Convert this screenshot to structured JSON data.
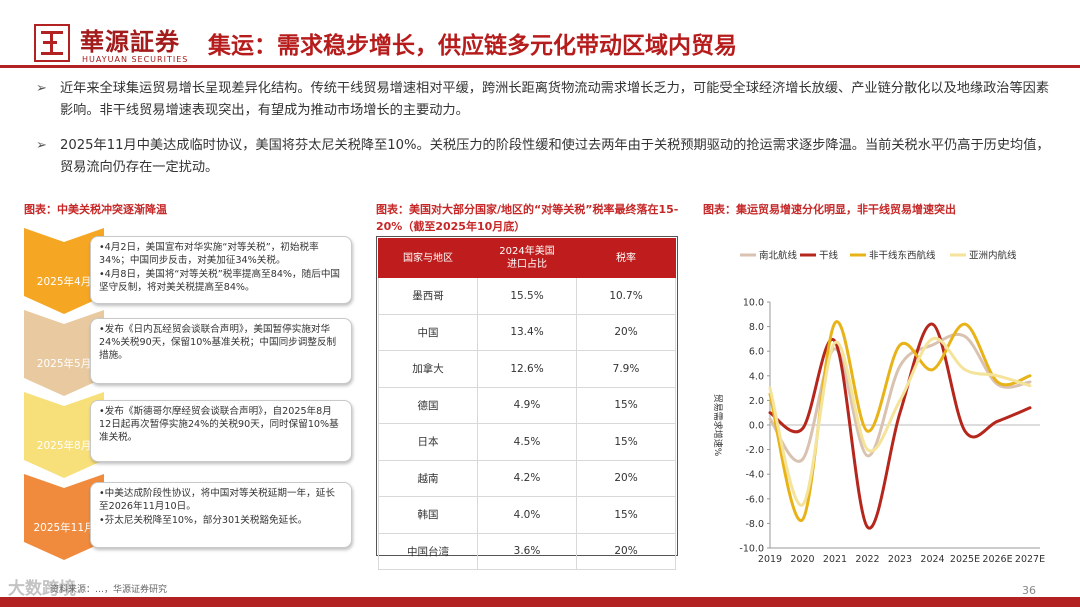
{
  "header": {
    "logo_cn": "華源証券",
    "logo_en": "HUAYUAN SECURITIES",
    "title": "集运：需求稳步增长，供应链多元化带动区域内贸易"
  },
  "bullets": [
    "近年来全球集运贸易增长呈现差异化结构。传统干线贸易增速相对平缓，跨洲长距离货物流动需求增长乏力，可能受全球经济增长放缓、产业链分散化以及地缘政治等因素影响。非干线贸易增速表现突出，有望成为推动市场增长的主要动力。",
    "2025年11月中美达成临时协议，美国将芬太尼关税降至10%。关税压力的阶段性缓和使过去两年由于关税预期驱动的抢运需求逐步降温。当前关税水平仍高于历史均值，贸易流向仍存在一定扰动。"
  ],
  "bullet_arrow": "➢",
  "timeline": {
    "caption": "图表：中美关税冲突逐渐降温",
    "items": [
      {
        "label": "2025年4月",
        "color": "#f5a623",
        "lines": [
          "•4月2日，美国宣布对华实施“对等关税”，初始税率34%；中国同步反击，对美加征34%关税。",
          "•4月8日，美国将“对等关税”税率提高至84%，随后中国坚守反制，将对美关税提高至84%。"
        ]
      },
      {
        "label": "2025年5月",
        "color": "#e8c9a0",
        "lines": [
          "•发布《日内瓦经贸会谈联合声明》，美国暂停实施对华24%关税90天，保留10%基准关税；中国同步调整反制措施。"
        ]
      },
      {
        "label": "2025年8月",
        "color": "#f7df7a",
        "lines": [
          "•发布《斯德哥尔摩经贸会谈联合声明》，自2025年8月12日起再次暂停实施24%的关税90天，同时保留10%基准关税。"
        ]
      },
      {
        "label": "2025年11月",
        "color": "#f08a3c",
        "lines": [
          "•中美达成阶段性协议，将中国对等关税延期一年，延长至2026年11月10日。",
          "•芬太尼关税降至10%，部分301关税豁免延长。"
        ]
      }
    ]
  },
  "table": {
    "caption": "图表：美国对大部分国家/地区的“对等关税”税率最终落在15-20%（截至2025年10月底）",
    "headers": [
      "国家与地区",
      "2024年美国\n进口占比",
      "税率"
    ],
    "rows": [
      [
        "墨西哥",
        "15.5%",
        "10.7%"
      ],
      [
        "中国",
        "13.4%",
        "20%"
      ],
      [
        "加拿大",
        "12.6%",
        "7.9%"
      ],
      [
        "德国",
        "4.9%",
        "15%"
      ],
      [
        "日本",
        "4.5%",
        "15%"
      ],
      [
        "越南",
        "4.2%",
        "20%"
      ],
      [
        "韩国",
        "4.0%",
        "15%"
      ],
      [
        "中国台湾",
        "3.6%",
        "20%"
      ]
    ]
  },
  "chart_caption": "图表：集运贸易增速分化明显，非干线贸易增速突出",
  "chart_data": {
    "type": "line",
    "title": "",
    "xlabel": "",
    "ylabel": "贸易需求增速%",
    "categories": [
      "2019",
      "2020",
      "2021",
      "2022",
      "2023",
      "2024",
      "2025E",
      "2026E",
      "2027E"
    ],
    "ylim": [
      -10,
      10
    ],
    "yticks": [
      "10.0",
      "8.0",
      "6.0",
      "4.0",
      "2.0",
      "0.0",
      "-2.0",
      "-4.0",
      "-6.0",
      "-8.0",
      "-10.0"
    ],
    "legend_position": "top",
    "series": [
      {
        "name": "南北航线",
        "color": "#d9c2b0",
        "values": [
          0.5,
          -2.8,
          6.2,
          -2.5,
          4.8,
          6.5,
          7.2,
          3.3,
          3.5
        ]
      },
      {
        "name": "干线",
        "color": "#b5261c",
        "values": [
          1.0,
          -0.3,
          6.8,
          -8.3,
          1.0,
          8.2,
          -0.5,
          0.3,
          1.4
        ]
      },
      {
        "name": "非干线东西航线",
        "color": "#e8b319",
        "values": [
          2.5,
          -7.7,
          8.3,
          -0.5,
          6.5,
          4.5,
          8.2,
          3.5,
          4.0
        ]
      },
      {
        "name": "亚洲内航线",
        "color": "#f4e39a",
        "values": [
          3.0,
          -6.5,
          6.7,
          -2.0,
          2.0,
          7.0,
          4.5,
          4.0,
          3.2
        ]
      }
    ]
  },
  "footer": {
    "source": "资料来源：…，华源证券研究",
    "watermark": "大数跨境",
    "page": "36"
  }
}
